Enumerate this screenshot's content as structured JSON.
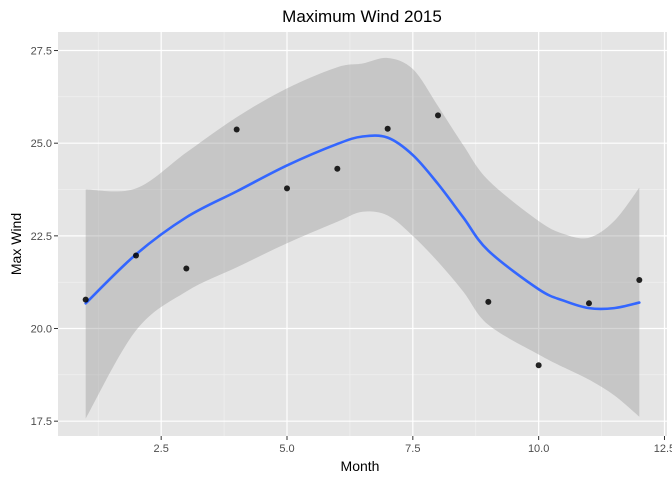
{
  "chart_data": {
    "type": "scatter",
    "title": "Maximum Wind 2015",
    "xlabel": "Month",
    "ylabel": "Max Wind",
    "xlim": [
      0.45,
      12.55
    ],
    "ylim": [
      17.1,
      28.0
    ],
    "x_ticks": [
      2.5,
      5.0,
      7.5,
      10.0,
      12.5
    ],
    "y_ticks": [
      17.5,
      20.0,
      22.5,
      25.0,
      27.5
    ],
    "x_tick_labels": [
      "2.5",
      "5.0",
      "7.5",
      "10.0",
      "12.5"
    ],
    "y_tick_labels": [
      "17.5",
      "20.0",
      "22.5",
      "25.0",
      "27.5"
    ],
    "grid": true,
    "points": {
      "x": [
        1,
        2,
        3,
        4,
        5,
        6,
        7,
        8,
        9,
        10,
        11,
        12
      ],
      "y": [
        20.78,
        21.97,
        21.62,
        25.37,
        23.78,
        24.31,
        25.39,
        25.75,
        20.72,
        19.01,
        20.68,
        21.31
      ]
    },
    "smooth": {
      "x": [
        1.0,
        2.0,
        3.0,
        4.0,
        5.0,
        6.0,
        6.5,
        7.0,
        7.5,
        8.0,
        8.5,
        9.0,
        10.0,
        10.5,
        11.0,
        11.5,
        12.0
      ],
      "y": [
        20.68,
        22.0,
        23.0,
        23.7,
        24.4,
        24.98,
        25.18,
        25.15,
        24.68,
        23.9,
        23.0,
        22.1,
        21.06,
        20.75,
        20.55,
        20.55,
        20.7
      ],
      "lower": [
        17.57,
        19.95,
        21.0,
        21.65,
        22.3,
        22.88,
        23.15,
        23.05,
        22.5,
        21.8,
        21.0,
        20.1,
        19.3,
        18.95,
        18.62,
        18.2,
        17.62
      ],
      "upper": [
        23.75,
        23.78,
        24.75,
        25.7,
        26.48,
        27.05,
        27.15,
        27.3,
        27.0,
        26.0,
        24.95,
        24.0,
        22.9,
        22.55,
        22.45,
        22.9,
        23.8
      ]
    },
    "colors": {
      "panel": "#e5e5e5",
      "grid_major": "#ffffff",
      "ribbon": "#999999",
      "line": "#3366ff",
      "point": "#000000"
    }
  }
}
